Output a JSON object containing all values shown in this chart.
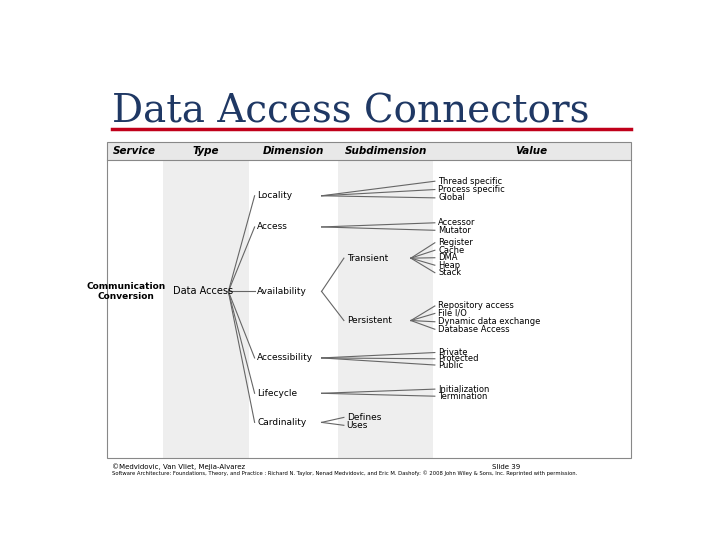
{
  "title": "Data Access Connectors",
  "title_color": "#1F3864",
  "title_fontsize": 28,
  "separator_color": "#C0001A",
  "bg_color": "#FFFFFF",
  "col_headers": [
    "Service",
    "Type",
    "Dimension",
    "Subdimension",
    "Value"
  ],
  "value_labels_locality": [
    "Thread specific",
    "Process specific",
    "Global"
  ],
  "value_labels_access": [
    "Accessor",
    "Mutator"
  ],
  "value_labels_transient": [
    "Register",
    "Cache",
    "DMA",
    "Heap",
    "Stack"
  ],
  "value_labels_persistent": [
    "Repository access",
    "File I/O",
    "Dynamic data exchange",
    "Database Access"
  ],
  "value_labels_accessibility": [
    "Private",
    "Protected",
    "Public"
  ],
  "value_labels_lifecycle": [
    "Initialization",
    "Termination"
  ],
  "footer_left": "©Medvidovic, Van Vliet, Mejia-Alvarez",
  "footer_right": "Slide 39",
  "footer_bottom": "Software Architecture: Foundations, Theory, and Practice : Richard N. Taylor, Nenad Medvidovic, and Eric M. Dashofy: © 2008 John Wiley & Sons, Inc. Reprinted with permission."
}
